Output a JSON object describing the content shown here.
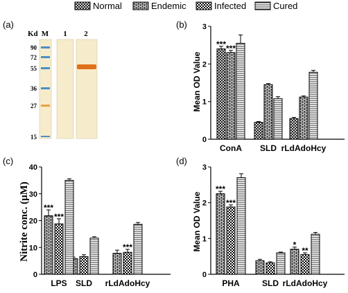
{
  "legend": {
    "entries": [
      {
        "label": "Normal",
        "pattern": "cross"
      },
      {
        "label": "Endemic",
        "pattern": "hbrick"
      },
      {
        "label": "Infected",
        "pattern": "checker"
      },
      {
        "label": "Cured",
        "pattern": "hlines"
      }
    ]
  },
  "panels": {
    "a": {
      "letter": "(a)",
      "kd_label": "Kd",
      "lanes": [
        "M",
        "1",
        "2"
      ],
      "markers": [
        "90",
        "72",
        "55",
        "36",
        "27",
        "15"
      ],
      "colors": {
        "gel": "#f6eccb",
        "band": "#e0701a",
        "marker_blue": "#4a90c8",
        "marker_orange": "#f0a040"
      }
    },
    "b": {
      "letter": "(b)"
    },
    "c": {
      "letter": "(c)"
    },
    "d": {
      "letter": "(d)"
    }
  },
  "chart_data": [
    {
      "panel": "b",
      "type": "bar",
      "ylabel": "Mean OD Value",
      "xlabel": "",
      "ylim": [
        0,
        3
      ],
      "yticks": [
        "0",
        "1",
        "2",
        "3"
      ],
      "categories": [
        "ConA",
        "SLD",
        "rLdAdoHcy"
      ],
      "series": [
        {
          "name": "Normal",
          "values": [
            2.4,
            0.45,
            0.55
          ],
          "errors": [
            0.07,
            0.02,
            0.03
          ]
        },
        {
          "name": "Endemic",
          "values": [
            2.3,
            1.45,
            1.12
          ],
          "errors": [
            0.06,
            0.03,
            0.03
          ]
        },
        {
          "name": "Infected",
          "values": [
            null,
            null,
            null
          ],
          "errors": [
            null,
            null,
            null
          ]
        },
        {
          "name": "Cured",
          "values": [
            2.55,
            1.08,
            1.78
          ],
          "errors": [
            0.22,
            0.05,
            0.05
          ]
        }
      ],
      "annotations": [
        [
          "***",
          "***",
          "***"
        ],
        [
          "",
          "",
          ""
        ],
        [
          "",
          "",
          "**"
        ]
      ]
    },
    {
      "panel": "c",
      "type": "bar",
      "ylabel": "Nitrite conc. (μM)",
      "xlabel": "",
      "ylim": [
        0,
        40
      ],
      "yticks": [
        "0",
        "10",
        "20",
        "30",
        "40"
      ],
      "categories": [
        "LPS",
        "SLD",
        "rLdAdoHcy"
      ],
      "series": [
        {
          "name": "Normal",
          "values": [
            null,
            null,
            null
          ],
          "errors": [
            null,
            null,
            null
          ]
        },
        {
          "name": "Endemic",
          "values": [
            21.8,
            5.8,
            7.8
          ],
          "errors": [
            2.2,
            0.6,
            1.2
          ]
        },
        {
          "name": "Infected",
          "values": [
            18.8,
            6.6,
            8.2
          ],
          "errors": [
            1.9,
            0.7,
            1.1
          ]
        },
        {
          "name": "Cured",
          "values": [
            35.0,
            13.5,
            18.6
          ],
          "errors": [
            0.6,
            0.5,
            0.7
          ]
        }
      ],
      "annotations": [
        [
          "***",
          "***",
          "***"
        ],
        [
          "",
          "",
          ""
        ],
        [
          "",
          "",
          "***"
        ]
      ]
    },
    {
      "panel": "d",
      "type": "bar",
      "ylabel": "Mean OD Value",
      "xlabel": "",
      "ylim": [
        0,
        3
      ],
      "yticks": [
        "0",
        "1",
        "2",
        "3"
      ],
      "categories": [
        "PHA",
        "SLD",
        "rLdAdoHcy"
      ],
      "series": [
        {
          "name": "Normal",
          "values": [
            null,
            null,
            null
          ],
          "errors": [
            null,
            null,
            null
          ]
        },
        {
          "name": "Endemic",
          "values": [
            2.25,
            0.38,
            0.7
          ],
          "errors": [
            0.07,
            0.04,
            0.06
          ]
        },
        {
          "name": "Infected",
          "values": [
            1.88,
            0.32,
            0.55
          ],
          "errors": [
            0.06,
            0.03,
            0.05
          ]
        },
        {
          "name": "Cured",
          "values": [
            2.7,
            0.6,
            1.12
          ],
          "errors": [
            0.11,
            0.02,
            0.05
          ]
        }
      ],
      "annotations": [
        [
          "***",
          "***",
          "***"
        ],
        [
          "",
          "",
          ""
        ],
        [
          "*",
          "*",
          "**"
        ]
      ]
    }
  ]
}
